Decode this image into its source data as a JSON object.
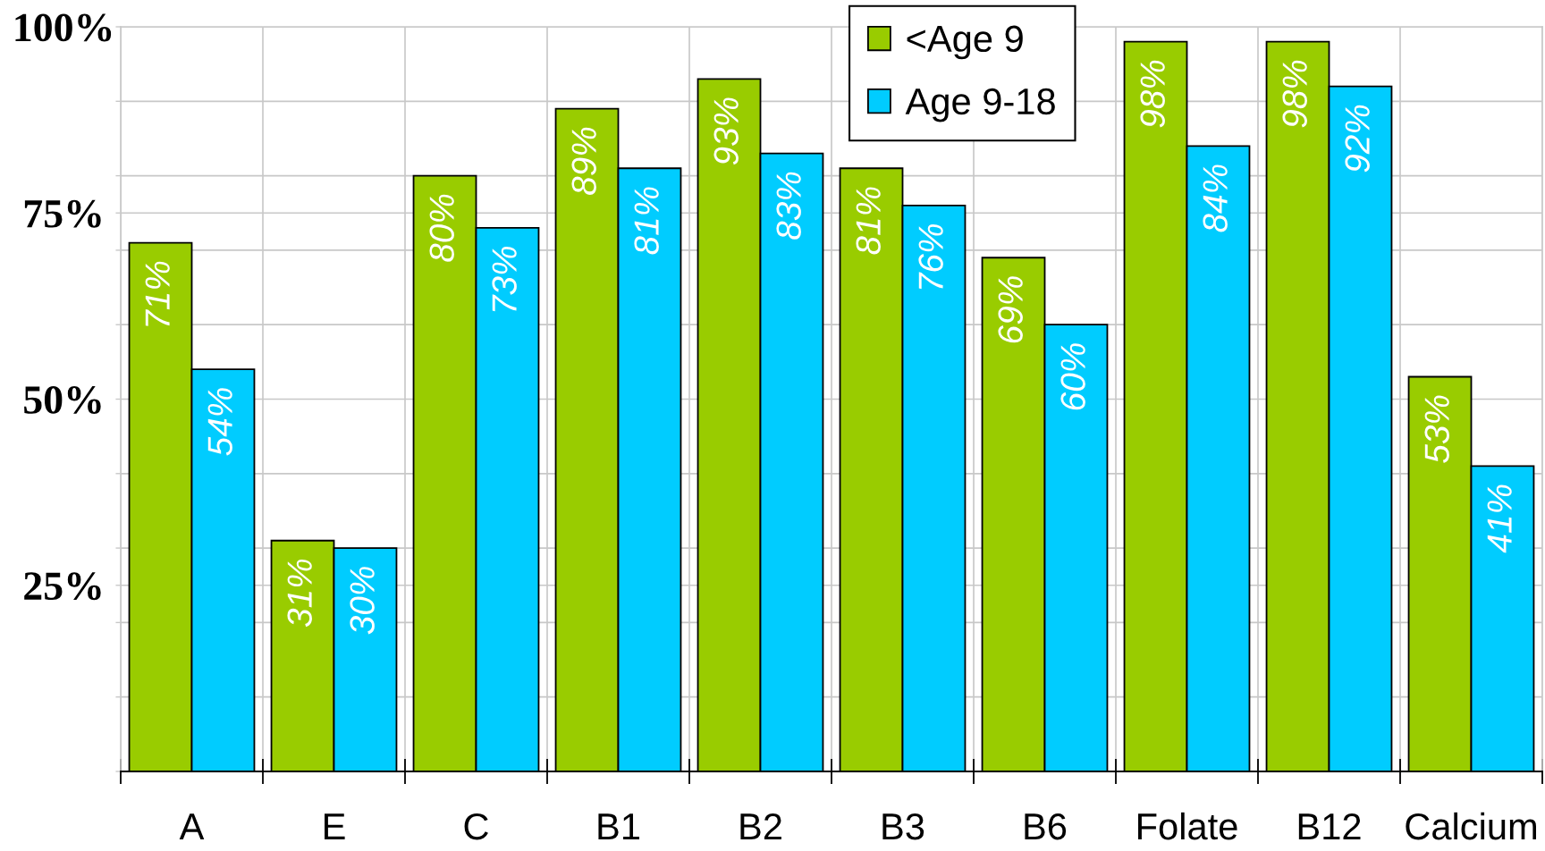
{
  "chart_data": {
    "type": "bar",
    "categories": [
      "A",
      "E",
      "C",
      "B1",
      "B2",
      "B3",
      "B6",
      "Folate",
      "B12",
      "Calcium"
    ],
    "series": [
      {
        "name": "<Age 9",
        "color": "#99cc00",
        "values": [
          71,
          31,
          80,
          89,
          93,
          81,
          69,
          98,
          98,
          53
        ],
        "value_labels": [
          "71%",
          "31%",
          "80%",
          "89%",
          "93%",
          "81%",
          "69%",
          "98%",
          "98%",
          "53%"
        ]
      },
      {
        "name": "Age 9-18",
        "color": "#00ccff",
        "values": [
          54,
          30,
          73,
          81,
          83,
          76,
          60,
          84,
          92,
          41
        ],
        "value_labels": [
          "54%",
          "30%",
          "73%",
          "81%",
          "83%",
          "76%",
          "60%",
          "84%",
          "92%",
          "41%"
        ]
      }
    ],
    "ylim": [
      0,
      100
    ],
    "yticks": [
      {
        "value": 0,
        "label": null
      },
      {
        "value": 10,
        "label": null
      },
      {
        "value": 20,
        "label": null
      },
      {
        "value": 25,
        "label": "25%"
      },
      {
        "value": 30,
        "label": null
      },
      {
        "value": 40,
        "label": null
      },
      {
        "value": 50,
        "label": "50%"
      },
      {
        "value": 60,
        "label": null
      },
      {
        "value": 70,
        "label": null
      },
      {
        "value": 75,
        "label": "75%"
      },
      {
        "value": 80,
        "label": null
      },
      {
        "value": 90,
        "label": null
      },
      {
        "value": 100,
        "label": "100%"
      }
    ],
    "grid": true,
    "legend": "top"
  }
}
